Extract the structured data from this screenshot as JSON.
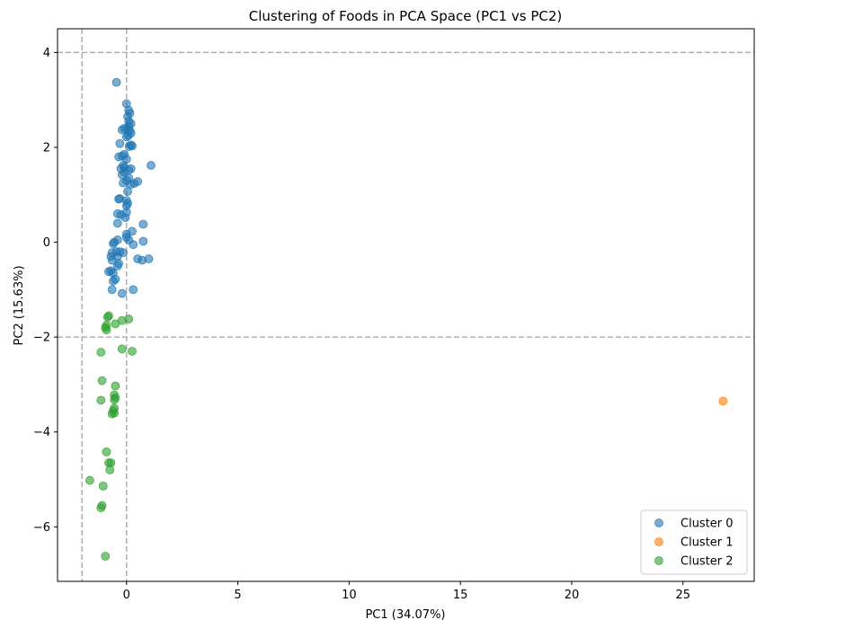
{
  "chart_data": {
    "type": "scatter",
    "title": "Clustering of Foods in PCA Space (PC1 vs PC2)",
    "xlabel": "PC1 (34.07%)",
    "ylabel": "PC2 (15.63%)",
    "xlim": [
      -3.1,
      28.2
    ],
    "ylim": [
      -7.15,
      4.5
    ],
    "xticks": [
      0,
      5,
      10,
      15,
      20,
      25
    ],
    "yticks": [
      -6,
      -4,
      -2,
      0,
      2,
      4
    ],
    "xtick_labels": [
      "0",
      "5",
      "10",
      "15",
      "20",
      "25"
    ],
    "ytick_labels": [
      "−6",
      "−4",
      "−2",
      "0",
      "2",
      "4"
    ],
    "reference_lines": {
      "vertical": [
        -2,
        0
      ],
      "horizontal": [
        -2,
        4
      ],
      "style": "dashed",
      "color": "#b0b0b0"
    },
    "legend": {
      "position": "lower-right"
    },
    "series": [
      {
        "name": "Cluster 0",
        "color": "#1f77b4",
        "points": [
          [
            -0.45,
            3.37
          ],
          [
            0.0,
            2.92
          ],
          [
            0.1,
            2.78
          ],
          [
            0.15,
            2.72
          ],
          [
            0.05,
            2.65
          ],
          [
            0.1,
            2.55
          ],
          [
            0.2,
            2.5
          ],
          [
            0.1,
            2.45
          ],
          [
            -0.1,
            2.4
          ],
          [
            0.05,
            2.38
          ],
          [
            -0.2,
            2.37
          ],
          [
            0.15,
            2.35
          ],
          [
            0.2,
            2.3
          ],
          [
            0.08,
            2.25
          ],
          [
            0.0,
            2.22
          ],
          [
            0.2,
            2.05
          ],
          [
            0.25,
            2.03
          ],
          [
            0.12,
            2.02
          ],
          [
            -0.3,
            2.08
          ],
          [
            -0.1,
            1.85
          ],
          [
            -0.2,
            1.82
          ],
          [
            -0.35,
            1.8
          ],
          [
            0.0,
            1.75
          ],
          [
            -0.15,
            1.62
          ],
          [
            -0.1,
            1.58
          ],
          [
            -0.25,
            1.55
          ],
          [
            0.2,
            1.55
          ],
          [
            0.1,
            1.52
          ],
          [
            -0.1,
            1.48
          ],
          [
            -0.2,
            1.42
          ],
          [
            0.1,
            1.35
          ],
          [
            0.0,
            1.3
          ],
          [
            0.5,
            1.28
          ],
          [
            -0.15,
            1.25
          ],
          [
            0.35,
            1.24
          ],
          [
            0.2,
            1.22
          ],
          [
            1.1,
            1.62
          ],
          [
            0.05,
            1.07
          ],
          [
            -0.3,
            0.92
          ],
          [
            -0.35,
            0.91
          ],
          [
            0.0,
            0.88
          ],
          [
            0.05,
            0.82
          ],
          [
            0.0,
            0.77
          ],
          [
            -0.4,
            0.6
          ],
          [
            -0.25,
            0.58
          ],
          [
            0.0,
            0.63
          ],
          [
            -0.05,
            0.52
          ],
          [
            -0.4,
            0.4
          ],
          [
            0.75,
            0.38
          ],
          [
            0.25,
            0.23
          ],
          [
            0.0,
            0.17
          ],
          [
            0.0,
            0.1
          ],
          [
            0.1,
            0.05
          ],
          [
            0.75,
            0.02
          ],
          [
            -0.4,
            0.05
          ],
          [
            -0.55,
            0.0
          ],
          [
            -0.6,
            -0.03
          ],
          [
            0.3,
            -0.05
          ],
          [
            -0.3,
            -0.2
          ],
          [
            -0.45,
            -0.2
          ],
          [
            -0.65,
            -0.22
          ],
          [
            -0.7,
            -0.3
          ],
          [
            -0.15,
            -0.22
          ],
          [
            -0.4,
            -0.3
          ],
          [
            -0.65,
            -0.38
          ],
          [
            0.5,
            -0.35
          ],
          [
            0.7,
            -0.38
          ],
          [
            1.0,
            -0.35
          ],
          [
            -0.35,
            -0.45
          ],
          [
            -0.4,
            -0.5
          ],
          [
            -0.7,
            -0.6
          ],
          [
            -0.8,
            -0.62
          ],
          [
            -0.6,
            -0.65
          ],
          [
            -0.5,
            -0.78
          ],
          [
            -0.6,
            -0.82
          ],
          [
            -0.65,
            -1.0
          ],
          [
            0.3,
            -1.0
          ],
          [
            -0.2,
            -1.08
          ]
        ]
      },
      {
        "name": "Cluster 1",
        "color": "#ff7f0e",
        "points": [
          [
            26.8,
            -3.35
          ]
        ]
      },
      {
        "name": "Cluster 2",
        "color": "#2ca02c",
        "points": [
          [
            -0.8,
            -1.55
          ],
          [
            -0.85,
            -1.58
          ],
          [
            0.1,
            -1.62
          ],
          [
            -0.2,
            -1.65
          ],
          [
            -0.5,
            -1.72
          ],
          [
            -0.9,
            -1.75
          ],
          [
            -0.95,
            -1.8
          ],
          [
            -0.9,
            -1.85
          ],
          [
            -0.2,
            -2.25
          ],
          [
            0.25,
            -2.3
          ],
          [
            -1.15,
            -2.32
          ],
          [
            -1.1,
            -2.92
          ],
          [
            -0.5,
            -3.03
          ],
          [
            -0.55,
            -3.22
          ],
          [
            -0.5,
            -3.28
          ],
          [
            -0.55,
            -3.32
          ],
          [
            -1.15,
            -3.33
          ],
          [
            -0.55,
            -3.5
          ],
          [
            -0.6,
            -3.55
          ],
          [
            -0.55,
            -3.6
          ],
          [
            -0.65,
            -3.62
          ],
          [
            -0.9,
            -4.42
          ],
          [
            -0.7,
            -4.65
          ],
          [
            -0.8,
            -4.65
          ],
          [
            -0.75,
            -4.8
          ],
          [
            -1.65,
            -5.02
          ],
          [
            -1.05,
            -5.14
          ],
          [
            -1.1,
            -5.55
          ],
          [
            -1.15,
            -5.6
          ],
          [
            -0.95,
            -6.62
          ]
        ]
      }
    ]
  }
}
